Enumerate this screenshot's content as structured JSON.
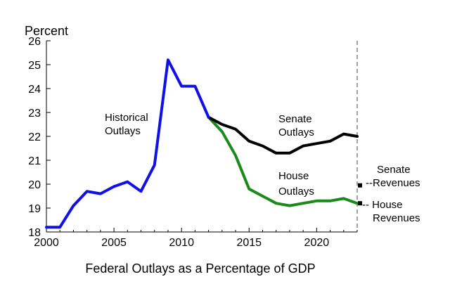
{
  "chart_data": {
    "type": "line",
    "title": "",
    "ylabel": "Percent",
    "xlabel": "Federal Outlays as a Percentage of GDP",
    "xlim": [
      2000,
      2023
    ],
    "ylim": [
      18,
      26
    ],
    "yticks": [
      18,
      19,
      20,
      21,
      22,
      23,
      24,
      25,
      26
    ],
    "xticks": [
      2000,
      2005,
      2010,
      2015,
      2020
    ],
    "ytick_labels": [
      "18",
      "19",
      "20",
      "21",
      "22",
      "23",
      "24",
      "25",
      "26"
    ],
    "xtick_labels": [
      "2000",
      "2005",
      "2010",
      "2015",
      "2020"
    ],
    "grid": false,
    "vertical_marker_year": 2023,
    "series": [
      {
        "key": "historical",
        "color": "#1010e8",
        "x": [
          2000,
          2001,
          2002,
          2003,
          2004,
          2005,
          2006,
          2007,
          2008,
          2009,
          2010,
          2011,
          2012
        ],
        "values": [
          18.2,
          18.2,
          19.1,
          19.7,
          19.6,
          19.9,
          20.1,
          19.7,
          20.8,
          25.2,
          24.1,
          24.1,
          22.8
        ]
      },
      {
        "key": "senate",
        "color": "#000000",
        "x": [
          2012,
          2013,
          2014,
          2015,
          2016,
          2017,
          2018,
          2019,
          2020,
          2021,
          2022,
          2023
        ],
        "values": [
          22.8,
          22.5,
          22.3,
          21.8,
          21.6,
          21.3,
          21.3,
          21.6,
          21.7,
          21.8,
          22.1,
          22.0
        ]
      },
      {
        "key": "house",
        "color": "#1a8a1a",
        "x": [
          2012,
          2013,
          2014,
          2015,
          2016,
          2017,
          2018,
          2019,
          2020,
          2021,
          2022,
          2023
        ],
        "values": [
          22.8,
          22.2,
          21.2,
          19.8,
          19.5,
          19.2,
          19.1,
          19.2,
          19.3,
          19.3,
          19.4,
          19.2
        ]
      }
    ],
    "markers": [
      {
        "key": "senate_revenues",
        "x": 2023,
        "y": 19.95
      },
      {
        "key": "house_revenues",
        "x": 2023,
        "y": 19.2
      }
    ],
    "annotations": {
      "historical": [
        "Historical",
        "Outlays"
      ],
      "senate_outlays": [
        "Senate",
        "Outlays"
      ],
      "house_outlays": [
        "House",
        "Outlays"
      ],
      "senate_revenues": [
        "Senate",
        "--Revenues"
      ],
      "house_revenues": [
        "-- House",
        "Revenues"
      ]
    }
  }
}
